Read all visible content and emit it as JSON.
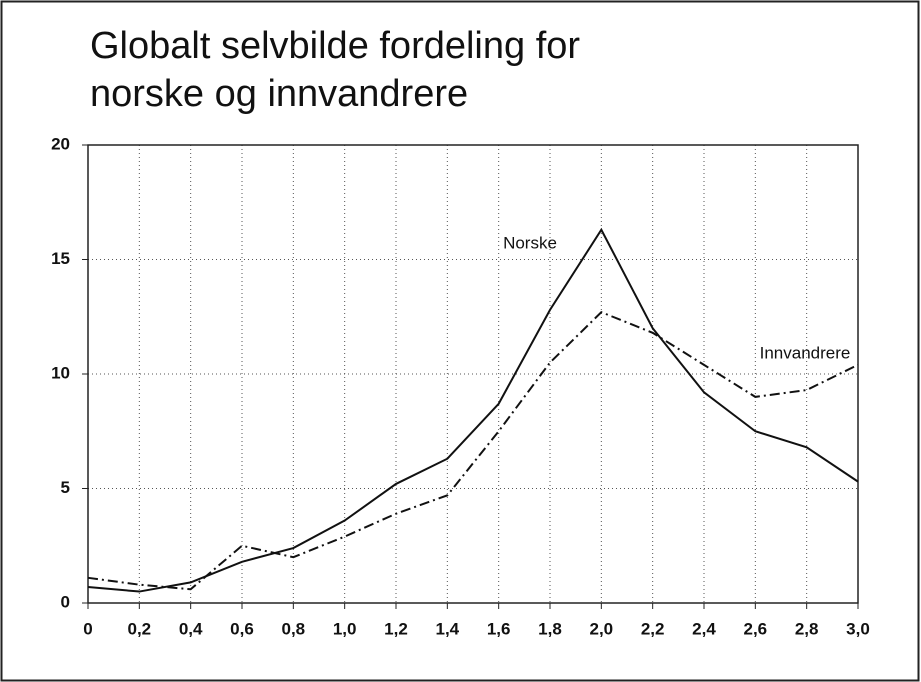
{
  "chart_data": {
    "type": "line",
    "title": [
      "Globalt selvbilde fordeling for",
      "norske og innvandrere"
    ],
    "x": [
      0,
      0.2,
      0.4,
      0.6,
      0.8,
      1.0,
      1.2,
      1.4,
      1.6,
      1.8,
      2.0,
      2.2,
      2.4,
      2.6,
      2.8,
      3.0
    ],
    "series": [
      {
        "name": "Norske",
        "color": "#111111",
        "dash": "solid",
        "values": [
          0.7,
          0.5,
          0.9,
          1.8,
          2.4,
          3.6,
          5.2,
          6.3,
          8.7,
          12.8,
          16.3,
          12.0,
          9.2,
          7.5,
          6.8,
          5.3
        ]
      },
      {
        "name": "Innvandrere",
        "color": "#111111",
        "dash": "dashdot",
        "values": [
          1.1,
          0.8,
          0.6,
          2.5,
          2.0,
          2.9,
          3.9,
          4.7,
          7.5,
          10.5,
          12.7,
          11.8,
          10.4,
          9.0,
          9.3,
          10.4
        ]
      }
    ],
    "xlim": [
      0,
      3.0
    ],
    "xticks": [
      0,
      {
        "value": 0.2,
        "label": "0,2"
      },
      {
        "value": 0.4,
        "label": "0,4"
      },
      {
        "value": 0.6,
        "label": "0,6"
      },
      {
        "value": 0.8,
        "label": "0,8"
      },
      {
        "value": 1.0,
        "label": "1,0"
      },
      {
        "value": 1.2,
        "label": "1,2"
      },
      {
        "value": 1.4,
        "label": "1,4"
      },
      {
        "value": 1.6,
        "label": "1,6"
      },
      {
        "value": 1.8,
        "label": "1,8"
      },
      {
        "value": 2.0,
        "label": "2,0"
      },
      {
        "value": 2.2,
        "label": "2,2"
      },
      {
        "value": 2.4,
        "label": "2,4"
      },
      {
        "value": 2.6,
        "label": "2,6"
      },
      {
        "value": 2.8,
        "label": "2,8"
      },
      {
        "value": 3.0,
        "label": "3,0"
      }
    ],
    "ylim": [
      0,
      20
    ],
    "yticks": [
      0,
      5,
      10,
      15,
      20
    ],
    "grid": true
  }
}
